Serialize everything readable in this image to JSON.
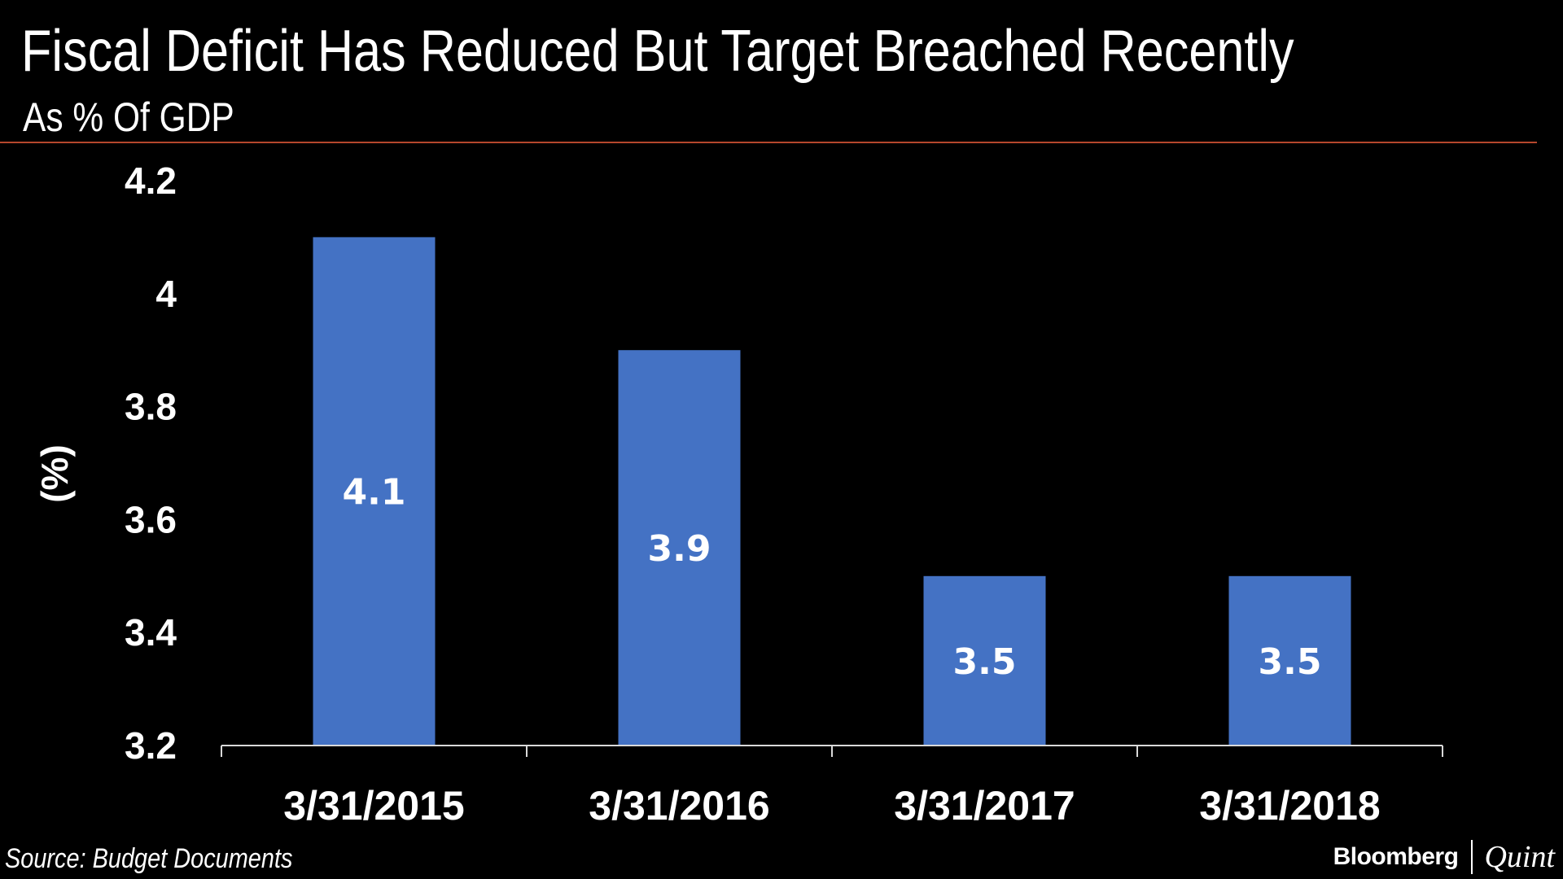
{
  "chart_data": {
    "type": "bar",
    "title": "Fiscal Deficit Has Reduced But Target Breached Recently",
    "subtitle": "As % Of GDP",
    "ylabel": "(%)",
    "xlabel": "",
    "categories": [
      "3/31/2015",
      "3/31/2016",
      "3/31/2017",
      "3/31/2018"
    ],
    "values": [
      4.1,
      3.9,
      3.5,
      3.5
    ],
    "data_labels": [
      "4.1",
      "3.9",
      "3.5",
      "3.5"
    ],
    "ylim": [
      3.2,
      4.2
    ],
    "yticks": [
      3.2,
      3.4,
      3.6,
      3.8,
      4,
      4.2
    ],
    "ytick_labels": [
      "3.2",
      "3.4",
      "3.6",
      "3.8",
      "4",
      "4.2"
    ],
    "grid": false,
    "legend": "none",
    "bar_color": "#4472c4",
    "background": "#000000"
  },
  "source": "Source: Budget Documents",
  "brand": {
    "primary": "Bloomberg",
    "secondary": "Quint"
  },
  "colors": {
    "divider": "#b5472c",
    "text": "#ffffff"
  }
}
